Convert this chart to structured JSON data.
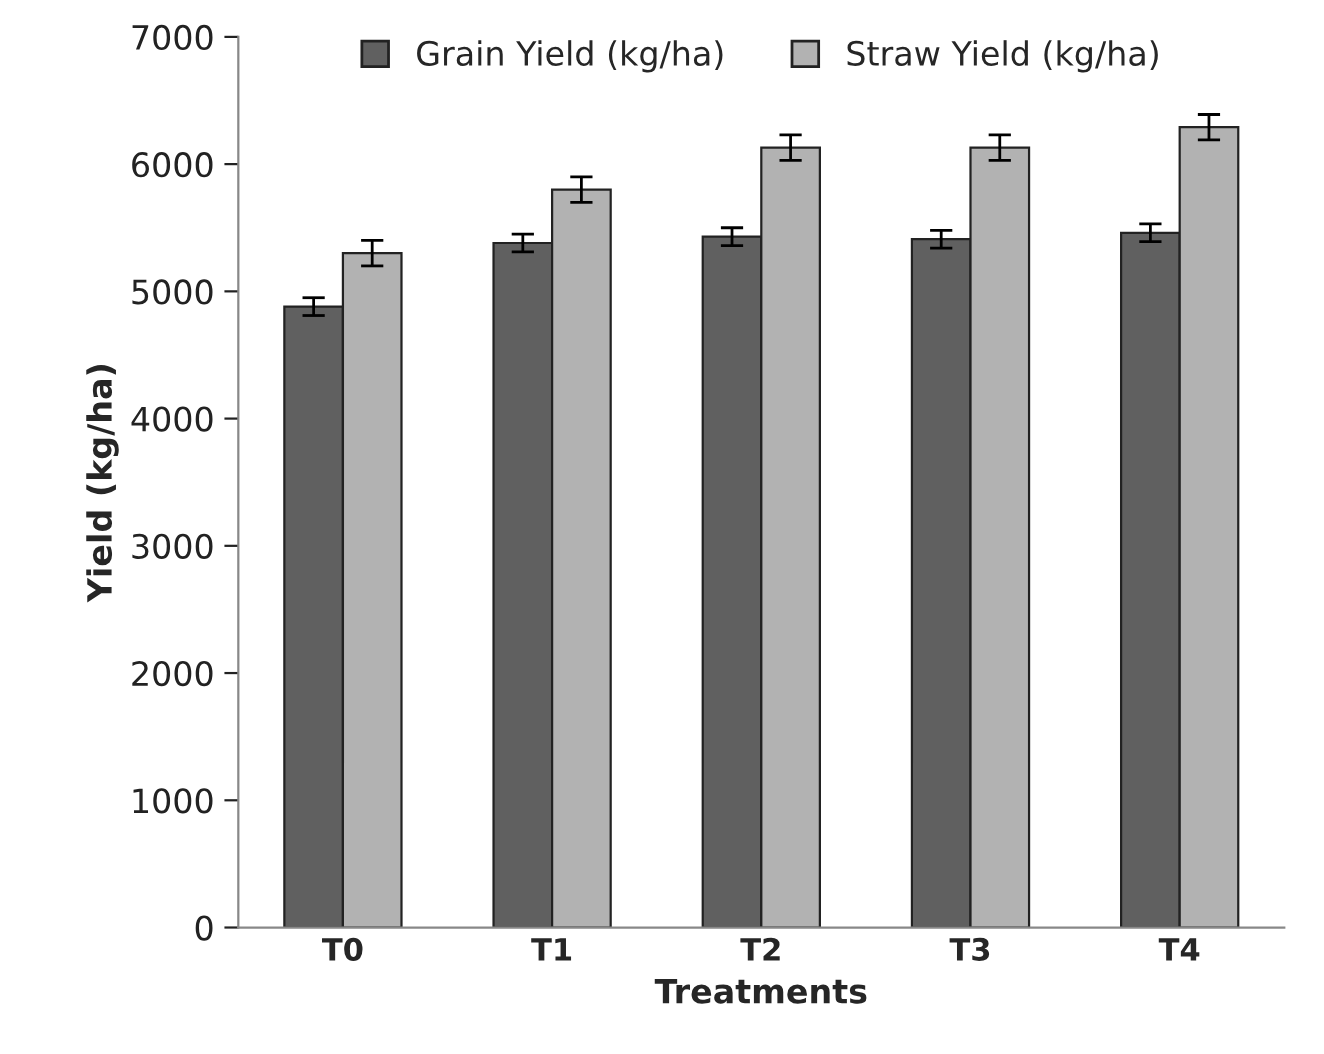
{
  "chart_data": {
    "type": "bar",
    "xlabel": "Treatments",
    "ylabel": "Yield (kg/ha)",
    "categories": [
      "T0",
      "T1",
      "T2",
      "T3",
      "T4"
    ],
    "series": [
      {
        "name": "Grain Yield (kg/ha)",
        "color": "#606060",
        "values": [
          4880,
          5380,
          5430,
          5410,
          5460
        ],
        "errors": [
          70,
          70,
          70,
          70,
          70
        ]
      },
      {
        "name": "Straw Yield (kg/ha)",
        "color": "#b2b2b2",
        "values": [
          5300,
          5800,
          6130,
          6130,
          6290
        ],
        "errors": [
          100,
          100,
          100,
          100,
          100
        ]
      }
    ],
    "ylim": [
      0,
      7000
    ],
    "yticks": [
      0,
      1000,
      2000,
      3000,
      4000,
      5000,
      6000,
      7000
    ],
    "grid": false,
    "legend": "top"
  }
}
